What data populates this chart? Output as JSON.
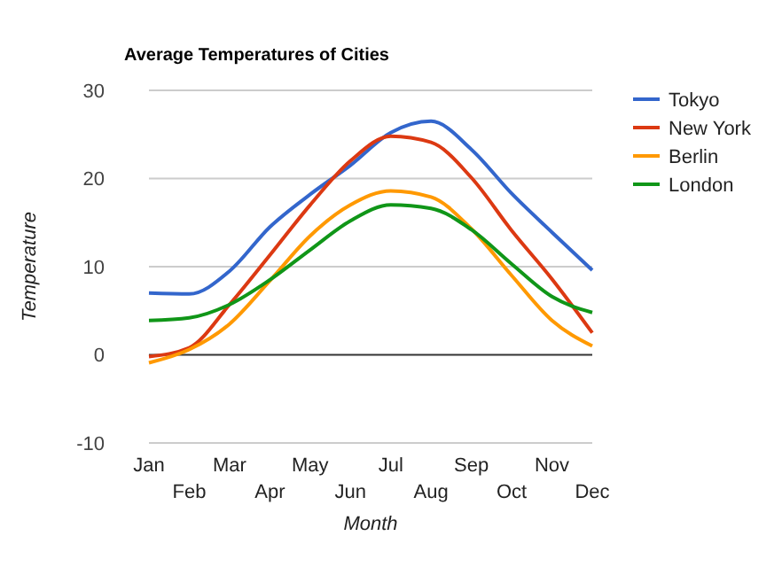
{
  "chart_data": {
    "type": "line",
    "title": "Average Temperatures of Cities",
    "xlabel": "Month",
    "ylabel": "Temperature",
    "categories": [
      "Jan",
      "Feb",
      "Mar",
      "Apr",
      "May",
      "Jun",
      "Jul",
      "Aug",
      "Sep",
      "Oct",
      "Nov",
      "Dec"
    ],
    "series": [
      {
        "name": "Tokyo",
        "color": "#3366cc",
        "values": [
          7.0,
          6.9,
          9.5,
          14.5,
          18.2,
          21.5,
          25.2,
          26.5,
          23.3,
          18.3,
          13.9,
          9.6
        ]
      },
      {
        "name": "New York",
        "color": "#dc3912",
        "values": [
          -0.2,
          0.8,
          5.7,
          11.3,
          17.0,
          22.0,
          24.8,
          24.1,
          20.1,
          14.1,
          8.6,
          2.5
        ]
      },
      {
        "name": "Berlin",
        "color": "#ff9900",
        "values": [
          -0.9,
          0.6,
          3.5,
          8.4,
          13.5,
          17.0,
          18.6,
          17.9,
          14.3,
          9.0,
          3.9,
          1.0
        ]
      },
      {
        "name": "London",
        "color": "#109618",
        "values": [
          3.9,
          4.2,
          5.7,
          8.5,
          11.9,
          15.2,
          17.0,
          16.6,
          14.2,
          10.3,
          6.6,
          4.8
        ]
      }
    ],
    "ylim": [
      -10,
      30
    ],
    "yticks": [
      -10,
      0,
      10,
      20,
      30
    ],
    "grid": "y",
    "legend": "right",
    "marker": "none",
    "line_style": "solid"
  }
}
